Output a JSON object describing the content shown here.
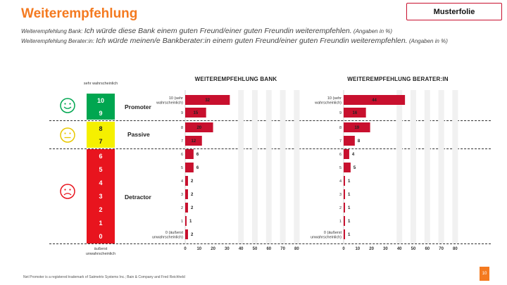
{
  "header": {
    "title": "Weiterempfehlung",
    "sub1_prefix": "Weiterempfehlung Bank:",
    "sub1_main": "Ich würde diese Bank einem guten Freund/einer guten Freundin weiterempfehlen.",
    "sub1_note": "(Angaben in %)",
    "sub2_prefix": "Weiterempfehlung Berater:in:",
    "sub2_main": "Ich würde meinen/e Bankberater:in einem guten Freund/einer guten Freundin weiterempfehlen.",
    "sub2_note": "(Angaben in %)",
    "badge": "Musterfolie"
  },
  "scale": {
    "top_label": "sehr wahrscheinlich",
    "bottom_label": "äußerst unwahrscheinlich",
    "scores": [
      "10",
      "9",
      "8",
      "7",
      "6",
      "5",
      "4",
      "3",
      "2",
      "1",
      "0"
    ],
    "colors": {
      "promoter": "#00a650",
      "passive": "#f5f000",
      "detractor": "#e8141e"
    },
    "categories": {
      "promoter": "Promoter",
      "passive": "Passive",
      "detractor": "Detractor"
    },
    "faces": {
      "promoter": "smiley-happy-icon",
      "passive": "smiley-neutral-icon",
      "detractor": "smiley-sad-icon"
    }
  },
  "chart_data": [
    {
      "type": "bar",
      "title": "WEITEREMPFEHLUNG BANK",
      "categories": [
        "10 (sehr wahrscheinlich)",
        "9",
        "8",
        "7",
        "6",
        "5",
        "4",
        "3",
        "2",
        "1",
        "0 (äußerst unwahrscheinlich)"
      ],
      "values": [
        32,
        15,
        20,
        12,
        6,
        6,
        2,
        2,
        2,
        1,
        2
      ],
      "xlim": [
        0,
        80
      ],
      "xticks": [
        0,
        10,
        20,
        30,
        40,
        50,
        60,
        70,
        80
      ],
      "bar_color": "#c8102e"
    },
    {
      "type": "bar",
      "title": "WEITEREMPFEHLUNG BERATER:IN",
      "categories": [
        "10 (sehr wahrscheinlich)",
        "9",
        "8",
        "7",
        "6",
        "5",
        "4",
        "3",
        "2",
        "1",
        "0 (äußerst unwahrscheinlich)"
      ],
      "values": [
        44,
        16,
        19,
        8,
        4,
        5,
        1,
        1,
        1,
        1,
        1
      ],
      "xlim": [
        0,
        80
      ],
      "xticks": [
        0,
        10,
        20,
        30,
        40,
        50,
        60,
        70,
        80
      ],
      "bar_color": "#c8102e"
    }
  ],
  "footer": {
    "note": "Net Promoter is a registered trademark of Satmetrix Systems Inc.; Bain & Company and Fred Reichheld",
    "page": "10"
  }
}
